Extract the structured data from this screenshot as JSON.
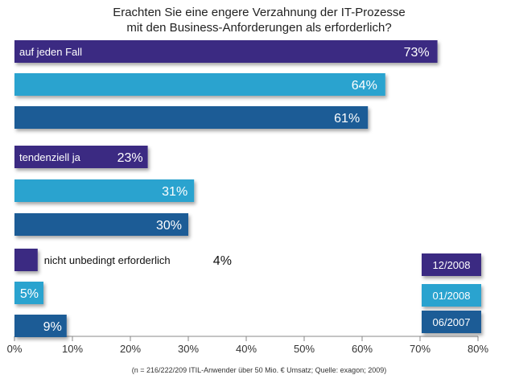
{
  "chart_data": {
    "type": "bar",
    "orientation": "horizontal",
    "title": [
      "Erachten Sie eine engere Verzahnung der IT-Prozesse",
      "mit den Business-Anforderungen als erforderlich?"
    ],
    "categories": [
      "auf jeden Fall",
      "tendenziell ja",
      "nicht unbedingt erforderlich"
    ],
    "series": [
      {
        "name": "12/2008",
        "color": "#3b2a82",
        "values": [
          73,
          23,
          4
        ]
      },
      {
        "name": "01/2008",
        "color": "#2aa3cf",
        "values": [
          64,
          31,
          5
        ]
      },
      {
        "name": "06/2007",
        "color": "#1d5b96",
        "values": [
          61,
          30,
          9
        ]
      }
    ],
    "xlim": [
      0,
      80
    ],
    "xticks": [
      0,
      10,
      20,
      30,
      40,
      50,
      60,
      70,
      80
    ],
    "tick_suffix": "%",
    "value_suffix": "%",
    "legend_position": "bottom-right",
    "footnote": "(n = 216/222/209 ITIL-Anwender über 50 Mio. € Umsatz; Quelle: exagon; 2009)"
  }
}
